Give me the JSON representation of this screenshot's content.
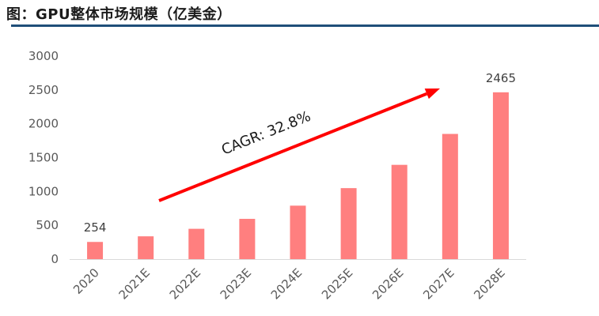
{
  "header": {
    "title": "图：GPU整体市场规模（亿美金）"
  },
  "chart_data": {
    "type": "bar",
    "categories": [
      "2020",
      "2021E",
      "2022E",
      "2023E",
      "2024E",
      "2025E",
      "2026E",
      "2027E",
      "2028E"
    ],
    "values": [
      254,
      337,
      448,
      595,
      790,
      1049,
      1393,
      1850,
      2465
    ],
    "ylim": [
      0,
      3000
    ],
    "yticks": [
      "0",
      "500",
      "1000",
      "1500",
      "2000",
      "2500",
      "3000"
    ],
    "data_labels": [
      {
        "index": 0,
        "text": "254"
      },
      {
        "index": 8,
        "text": "2465"
      }
    ],
    "annotation": {
      "text": "CAGR: 32.8%"
    },
    "bar_color": "#ff7f7f",
    "arrow_color": "#ff0000",
    "grid": false
  }
}
